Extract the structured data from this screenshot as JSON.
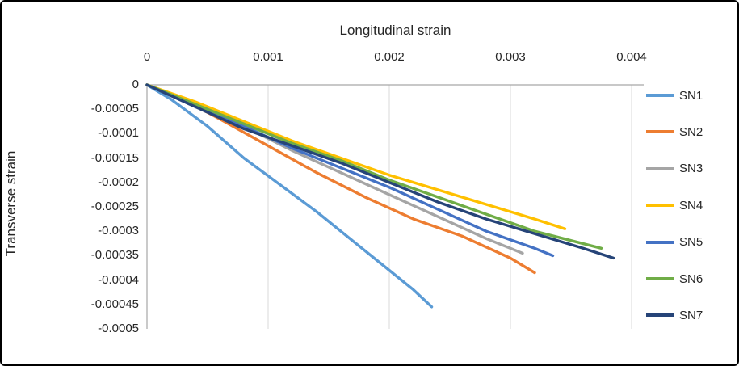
{
  "chart_data": {
    "type": "line",
    "title": "",
    "xlabel": "Longitudinal strain",
    "ylabel": "Transverse strain",
    "xlim": [
      0,
      0.0041
    ],
    "ylim": [
      -0.0005,
      0
    ],
    "x_axis_position": "top",
    "grid": "vertical-only",
    "legend_position": "right",
    "x_tick_values": [
      0,
      0.001,
      0.002,
      0.003,
      0.004
    ],
    "x_tick_labels": [
      "0",
      "0.001",
      "0.002",
      "0.003",
      "0.004"
    ],
    "y_tick_values": [
      0,
      -5e-05,
      -0.0001,
      -0.00015,
      -0.0002,
      -0.00025,
      -0.0003,
      -0.00035,
      -0.0004,
      -0.00045,
      -0.0005
    ],
    "y_tick_labels": [
      "0",
      "-0.00005",
      "-0.0001",
      "-0.00015",
      "-0.0002",
      "-0.00025",
      "-0.0003",
      "-0.00035",
      "-0.0004",
      "-0.00045",
      "-0.0005"
    ],
    "series": [
      {
        "name": "SN1",
        "color": "#5B9BD5",
        "points": [
          [
            0,
            0
          ],
          [
            0.0002,
            -3e-05
          ],
          [
            0.0005,
            -8.5e-05
          ],
          [
            0.0008,
            -0.00015
          ],
          [
            0.0011,
            -0.000205
          ],
          [
            0.0014,
            -0.00026
          ],
          [
            0.0017,
            -0.00032
          ],
          [
            0.002,
            -0.00038
          ],
          [
            0.0022,
            -0.00042
          ],
          [
            0.00235,
            -0.000455
          ]
        ]
      },
      {
        "name": "SN2",
        "color": "#ED7D31",
        "points": [
          [
            0,
            0
          ],
          [
            0.0003,
            -3e-05
          ],
          [
            0.0006,
            -7e-05
          ],
          [
            0.001,
            -0.000125
          ],
          [
            0.0014,
            -0.00018
          ],
          [
            0.0018,
            -0.00023
          ],
          [
            0.0022,
            -0.000275
          ],
          [
            0.0026,
            -0.00031
          ],
          [
            0.003,
            -0.000355
          ],
          [
            0.0032,
            -0.000385
          ]
        ]
      },
      {
        "name": "SN3",
        "color": "#A5A5A5",
        "points": [
          [
            0,
            0
          ],
          [
            0.0004,
            -4e-05
          ],
          [
            0.0008,
            -8.5e-05
          ],
          [
            0.0012,
            -0.000135
          ],
          [
            0.0016,
            -0.00018
          ],
          [
            0.002,
            -0.000225
          ],
          [
            0.0024,
            -0.00027
          ],
          [
            0.0028,
            -0.000315
          ],
          [
            0.0031,
            -0.000345
          ]
        ]
      },
      {
        "name": "SN4",
        "color": "#FFC000",
        "points": [
          [
            0,
            0
          ],
          [
            0.0004,
            -3.5e-05
          ],
          [
            0.0008,
            -7.5e-05
          ],
          [
            0.0012,
            -0.000115
          ],
          [
            0.0016,
            -0.00015
          ],
          [
            0.002,
            -0.000185
          ],
          [
            0.0024,
            -0.000215
          ],
          [
            0.0028,
            -0.000245
          ],
          [
            0.0032,
            -0.000275
          ],
          [
            0.00345,
            -0.000295
          ]
        ]
      },
      {
        "name": "SN5",
        "color": "#4472C4",
        "points": [
          [
            0,
            0
          ],
          [
            0.0004,
            -4.5e-05
          ],
          [
            0.0008,
            -8.5e-05
          ],
          [
            0.0012,
            -0.00013
          ],
          [
            0.0016,
            -0.00017
          ],
          [
            0.002,
            -0.00021
          ],
          [
            0.0024,
            -0.000255
          ],
          [
            0.0028,
            -0.0003
          ],
          [
            0.0032,
            -0.000335
          ],
          [
            0.00335,
            -0.00035
          ]
        ]
      },
      {
        "name": "SN6",
        "color": "#70AD47",
        "points": [
          [
            0,
            0
          ],
          [
            0.0004,
            -4e-05
          ],
          [
            0.0008,
            -8e-05
          ],
          [
            0.0012,
            -0.00012
          ],
          [
            0.0016,
            -0.000155
          ],
          [
            0.002,
            -0.000195
          ],
          [
            0.0024,
            -0.00023
          ],
          [
            0.0028,
            -0.000265
          ],
          [
            0.0032,
            -0.0003
          ],
          [
            0.00375,
            -0.000335
          ]
        ]
      },
      {
        "name": "SN7",
        "color": "#264478",
        "points": [
          [
            0,
            0
          ],
          [
            0.0004,
            -4.5e-05
          ],
          [
            0.0008,
            -9e-05
          ],
          [
            0.0012,
            -0.000125
          ],
          [
            0.0016,
            -0.00016
          ],
          [
            0.002,
            -0.0002
          ],
          [
            0.0024,
            -0.00024
          ],
          [
            0.0028,
            -0.000275
          ],
          [
            0.0032,
            -0.000305
          ],
          [
            0.0036,
            -0.000335
          ],
          [
            0.00385,
            -0.000355
          ]
        ]
      }
    ],
    "colors": {
      "gridline": "#d9d9d9",
      "axis_line": "#a6a6a6",
      "text": "#262626"
    }
  }
}
